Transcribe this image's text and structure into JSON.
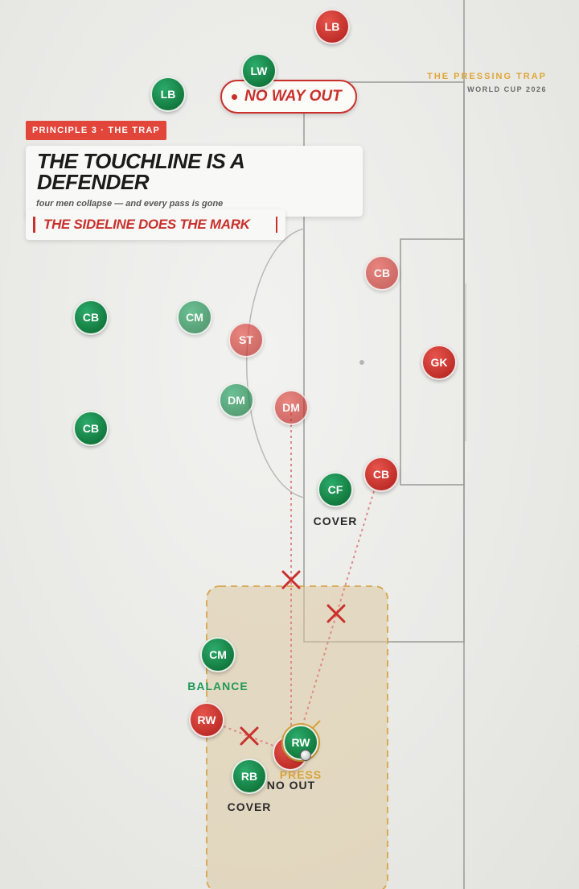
{
  "brand": {
    "title": "THE PRESSING TRAP",
    "subtitle": "WORLD CUP 2026"
  },
  "tag": "PRINCIPLE 3 · THE TRAP",
  "card": {
    "title": "THE TOUCHLINE IS A DEFENDER",
    "subtitle": "four men collapse — and every pass is gone",
    "callout": "THE SIDELINE DOES THE MARK"
  },
  "pill": "NO WAY OUT",
  "colors": {
    "green_team": "#137a3f",
    "red_team": "#c02e29",
    "accent": "#e2a637",
    "trap_zone": "#dcc9a0"
  },
  "players": {
    "red": [
      {
        "id": "LB",
        "label": "LB"
      },
      {
        "id": "CB1",
        "label": "CB"
      },
      {
        "id": "ST",
        "label": "ST"
      },
      {
        "id": "GK",
        "label": "GK"
      },
      {
        "id": "DM",
        "label": "DM"
      },
      {
        "id": "CB2",
        "label": "CB"
      },
      {
        "id": "RW",
        "label": "RW"
      },
      {
        "id": "CARRIER",
        "label": ""
      }
    ],
    "green": [
      {
        "id": "LW",
        "label": "LW"
      },
      {
        "id": "LB",
        "label": "LB"
      },
      {
        "id": "CB1",
        "label": "CB"
      },
      {
        "id": "CM1",
        "label": "CM"
      },
      {
        "id": "DM",
        "label": "DM"
      },
      {
        "id": "CB2",
        "label": "CB"
      },
      {
        "id": "CF",
        "label": "CF"
      },
      {
        "id": "CM2",
        "label": "CM"
      },
      {
        "id": "RW",
        "label": "RW"
      },
      {
        "id": "RB",
        "label": "RB"
      }
    ]
  },
  "labels": {
    "cover_top": "COVER",
    "balance": "BALANCE",
    "press": "PRESS",
    "no_out": "NO OUT",
    "cover_bottom": "COVER"
  },
  "icons": [
    "cross-icon",
    "ball-icon"
  ]
}
